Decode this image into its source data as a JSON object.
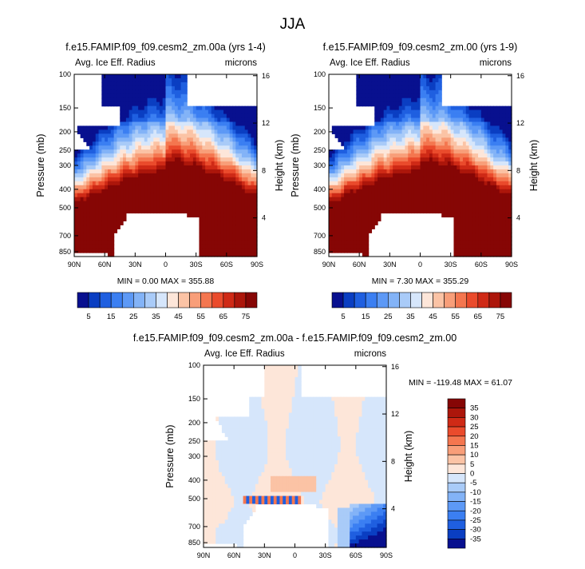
{
  "page": {
    "title": "JJA"
  },
  "palettes": {
    "abs": [
      "#08108f",
      "#0a3ec2",
      "#1f5fe0",
      "#3b7ff2",
      "#5d99f6",
      "#83b3f7",
      "#a9cbf8",
      "#d6e6fb",
      "#fde6d9",
      "#fbc3a5",
      "#f89e79",
      "#f4764f",
      "#ea4b2c",
      "#cf2a16",
      "#ac160b",
      "#860605"
    ],
    "diff": [
      "#08108f",
      "#0a3ec2",
      "#1f5fe0",
      "#3b7ff2",
      "#5d99f6",
      "#83b3f7",
      "#a9cbf8",
      "#d6e6fb",
      "#fde6d9",
      "#fbc3a5",
      "#f89e79",
      "#f4764f",
      "#ea4b2c",
      "#cf2a16",
      "#ac160b",
      "#860605"
    ]
  },
  "chart_data": [
    {
      "type": "heatmap",
      "id": "p1",
      "title": "f.e15.FAMIP.f09_f09.cesm2_zm.00a (yrs 1-4)",
      "left_string": "Avg. Ice Eff. Radius",
      "right_string": "microns",
      "ylabel": "Pressure (mb)",
      "ylabel_right": "Height (km)",
      "x_ticks": [
        "90N",
        "60N",
        "30N",
        "0",
        "30S",
        "60S",
        "90S"
      ],
      "y_ticks": [
        "100",
        "150",
        "200",
        "250",
        "300",
        "400",
        "500",
        "700",
        "850"
      ],
      "y_ticks_right": [
        "16",
        "12",
        "8",
        "4"
      ],
      "min_max": "MIN =   0.00   MAX = 355.88",
      "colorbar_labels": [
        "5",
        "15",
        "25",
        "35",
        "45",
        "55",
        "65",
        "75"
      ],
      "colorbar_position": "bottom"
    },
    {
      "type": "heatmap",
      "id": "p2",
      "title": "f.e15.FAMIP.f09_f09.cesm2_zm.00 (yrs 1-9)",
      "left_string": "Avg. Ice Eff. Radius",
      "right_string": "microns",
      "ylabel": "Pressure (mb)",
      "ylabel_right": "Height (km)",
      "x_ticks": [
        "90N",
        "60N",
        "30N",
        "0",
        "30S",
        "60S",
        "90S"
      ],
      "y_ticks": [
        "100",
        "150",
        "200",
        "250",
        "300",
        "400",
        "500",
        "700",
        "850"
      ],
      "y_ticks_right": [
        "16",
        "12",
        "8",
        "4"
      ],
      "min_max": "MIN =   7.30   MAX = 355.29",
      "colorbar_labels": [
        "5",
        "15",
        "25",
        "35",
        "45",
        "55",
        "65",
        "75"
      ],
      "colorbar_position": "bottom"
    },
    {
      "type": "heatmap",
      "id": "p3",
      "title": "f.e15.FAMIP.f09_f09.cesm2_zm.00a - f.e15.FAMIP.f09_f09.cesm2_zm.00",
      "left_string": "Avg. Ice Eff. Radius",
      "right_string": "microns",
      "ylabel": "Pressure (mb)",
      "ylabel_right": "Height (km)",
      "x_ticks": [
        "90N",
        "60N",
        "30N",
        "0",
        "30S",
        "60S",
        "90S"
      ],
      "y_ticks": [
        "100",
        "150",
        "200",
        "250",
        "300",
        "400",
        "500",
        "700",
        "850"
      ],
      "y_ticks_right": [
        "16",
        "12",
        "8",
        "4"
      ],
      "min_max": "MIN = -119.48   MAX =  61.07",
      "colorbar_labels": [
        "35",
        "30",
        "25",
        "20",
        "15",
        "10",
        "5",
        "0",
        "-5",
        "-10",
        "-15",
        "-20",
        "-25",
        "-30",
        "-35"
      ],
      "colorbar_position": "right"
    }
  ]
}
